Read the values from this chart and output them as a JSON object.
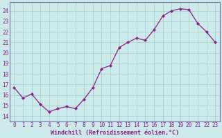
{
  "x": [
    0,
    1,
    2,
    3,
    4,
    5,
    6,
    7,
    8,
    9,
    10,
    11,
    12,
    13,
    14,
    15,
    16,
    17,
    18,
    19,
    20,
    21,
    22,
    23
  ],
  "y": [
    16.7,
    15.7,
    16.1,
    15.1,
    14.4,
    14.7,
    14.9,
    14.7,
    15.6,
    16.7,
    18.5,
    18.8,
    20.5,
    21.0,
    21.4,
    21.2,
    22.2,
    23.5,
    24.0,
    24.2,
    24.1,
    22.8,
    22.0,
    21.0
  ],
  "line_color": "#882288",
  "marker": "D",
  "marker_size": 2.0,
  "bg_color": "#cceaea",
  "grid_color": "#aacece",
  "spine_color": "#7777aa",
  "ylabel_ticks": [
    14,
    15,
    16,
    17,
    18,
    19,
    20,
    21,
    22,
    23,
    24
  ],
  "xlabel_ticks": [
    0,
    1,
    2,
    3,
    4,
    5,
    6,
    7,
    8,
    9,
    10,
    11,
    12,
    13,
    14,
    15,
    16,
    17,
    18,
    19,
    20,
    21,
    22,
    23
  ],
  "xlabel_label": "Windchill (Refroidissement éolien,°C)",
  "tick_fontsize": 5.5,
  "label_fontsize": 6.0,
  "ylim": [
    13.5,
    24.8
  ],
  "xlim": [
    -0.5,
    23.5
  ]
}
